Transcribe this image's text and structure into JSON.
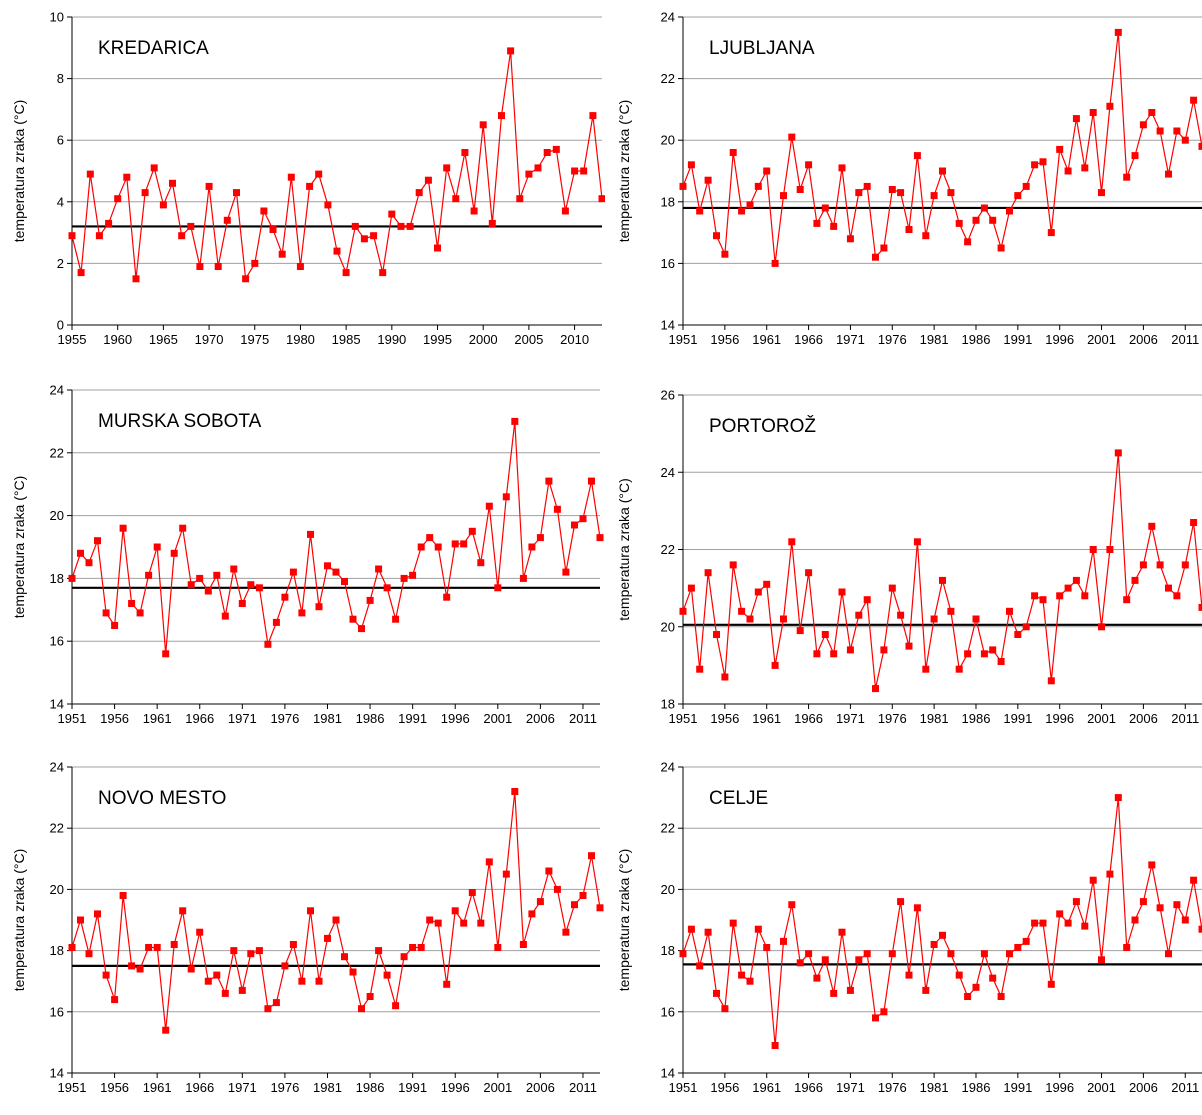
{
  "chart_data": [
    {
      "type": "line",
      "title": "KREDARICA",
      "ylabel": "temperatura zraka (°C)",
      "ylim": [
        0,
        10
      ],
      "yticks": [
        0,
        2,
        4,
        6,
        8,
        10
      ],
      "xlim": [
        1955,
        2013
      ],
      "xticks": [
        1955,
        1960,
        1965,
        1970,
        1975,
        1980,
        1985,
        1990,
        1995,
        2000,
        2005,
        2010
      ],
      "reference_line": 3.2,
      "grid": "horizontal",
      "series_color": "#ff0000",
      "x": [
        1955,
        1956,
        1957,
        1958,
        1959,
        1960,
        1961,
        1962,
        1963,
        1964,
        1965,
        1966,
        1967,
        1968,
        1969,
        1970,
        1971,
        1972,
        1973,
        1974,
        1975,
        1976,
        1977,
        1978,
        1979,
        1980,
        1981,
        1982,
        1983,
        1984,
        1985,
        1986,
        1987,
        1988,
        1989,
        1990,
        1991,
        1992,
        1993,
        1994,
        1995,
        1996,
        1997,
        1998,
        1999,
        2000,
        2001,
        2002,
        2003,
        2004,
        2005,
        2006,
        2007,
        2008,
        2009,
        2010,
        2011,
        2012,
        2013
      ],
      "y": [
        2.9,
        1.7,
        4.9,
        2.9,
        3.3,
        4.1,
        4.8,
        1.5,
        4.3,
        5.1,
        3.9,
        4.6,
        2.9,
        3.2,
        1.9,
        4.5,
        1.9,
        3.4,
        4.3,
        1.5,
        2.0,
        3.7,
        3.1,
        2.3,
        4.8,
        1.9,
        4.5,
        4.9,
        3.9,
        2.4,
        1.7,
        3.2,
        2.8,
        2.9,
        1.7,
        3.6,
        3.2,
        3.2,
        4.3,
        4.7,
        2.5,
        5.1,
        4.1,
        5.6,
        3.7,
        6.5,
        3.3,
        6.8,
        8.9,
        4.1,
        4.9,
        5.1,
        5.6,
        5.7,
        3.7,
        5.0,
        5.0,
        6.8,
        4.1
      ]
    },
    {
      "type": "line",
      "title": "LJUBLJANA",
      "ylabel": "temperatura zraka (°C)",
      "ylim": [
        14,
        24
      ],
      "yticks": [
        14,
        16,
        18,
        20,
        22,
        24
      ],
      "xlim": [
        1951,
        2013
      ],
      "xticks": [
        1951,
        1956,
        1961,
        1966,
        1971,
        1976,
        1981,
        1986,
        1991,
        1996,
        2001,
        2006,
        2011
      ],
      "reference_line": 17.8,
      "grid": "horizontal",
      "series_color": "#ff0000",
      "x": [
        1951,
        1952,
        1953,
        1954,
        1955,
        1956,
        1957,
        1958,
        1959,
        1960,
        1961,
        1962,
        1963,
        1964,
        1965,
        1966,
        1967,
        1968,
        1969,
        1970,
        1971,
        1972,
        1973,
        1974,
        1975,
        1976,
        1977,
        1978,
        1979,
        1980,
        1981,
        1982,
        1983,
        1984,
        1985,
        1986,
        1987,
        1988,
        1989,
        1990,
        1991,
        1992,
        1993,
        1994,
        1995,
        1996,
        1997,
        1998,
        1999,
        2000,
        2001,
        2002,
        2003,
        2004,
        2005,
        2006,
        2007,
        2008,
        2009,
        2010,
        2011,
        2012,
        2013
      ],
      "y": [
        18.5,
        19.2,
        17.7,
        18.7,
        16.9,
        16.3,
        19.6,
        17.7,
        17.9,
        18.5,
        19.0,
        16.0,
        18.2,
        20.1,
        18.4,
        19.2,
        17.3,
        17.8,
        17.2,
        19.1,
        16.8,
        18.3,
        18.5,
        16.2,
        16.5,
        18.4,
        18.3,
        17.1,
        19.5,
        16.9,
        18.2,
        19.0,
        18.3,
        17.3,
        16.7,
        17.4,
        17.8,
        17.4,
        16.5,
        17.7,
        18.2,
        18.5,
        19.2,
        19.3,
        17.0,
        19.7,
        19.0,
        20.7,
        19.1,
        20.9,
        18.3,
        21.1,
        23.5,
        18.8,
        19.5,
        20.5,
        20.9,
        20.3,
        18.9,
        20.3,
        20.0,
        21.3,
        19.8
      ]
    },
    {
      "type": "line",
      "title": "MURSKA SOBOTA",
      "ylabel": "temperatura zraka (°C)",
      "ylim": [
        14,
        24
      ],
      "yticks": [
        14,
        16,
        18,
        20,
        22,
        24
      ],
      "xlim": [
        1951,
        2013
      ],
      "xticks": [
        1951,
        1956,
        1961,
        1966,
        1971,
        1976,
        1981,
        1986,
        1991,
        1996,
        2001,
        2006,
        2011
      ],
      "reference_line": 17.7,
      "grid": "horizontal",
      "series_color": "#ff0000",
      "x": [
        1951,
        1952,
        1953,
        1954,
        1955,
        1956,
        1957,
        1958,
        1959,
        1960,
        1961,
        1962,
        1963,
        1964,
        1965,
        1966,
        1967,
        1968,
        1969,
        1970,
        1971,
        1972,
        1973,
        1974,
        1975,
        1976,
        1977,
        1978,
        1979,
        1980,
        1981,
        1982,
        1983,
        1984,
        1985,
        1986,
        1987,
        1988,
        1989,
        1990,
        1991,
        1992,
        1993,
        1994,
        1995,
        1996,
        1997,
        1998,
        1999,
        2000,
        2001,
        2002,
        2003,
        2004,
        2005,
        2006,
        2007,
        2008,
        2009,
        2010,
        2011,
        2012,
        2013
      ],
      "y": [
        18.0,
        18.8,
        18.5,
        19.2,
        16.9,
        16.5,
        19.6,
        17.2,
        16.9,
        18.1,
        19.0,
        15.6,
        18.8,
        19.6,
        17.8,
        18.0,
        17.6,
        18.1,
        16.8,
        18.3,
        17.2,
        17.8,
        17.7,
        15.9,
        16.6,
        17.4,
        18.2,
        16.9,
        19.4,
        17.1,
        18.4,
        18.2,
        17.9,
        16.7,
        16.4,
        17.3,
        18.3,
        17.7,
        16.7,
        18.0,
        18.1,
        19.0,
        19.3,
        19.0,
        17.4,
        19.1,
        19.1,
        19.5,
        18.5,
        20.3,
        17.7,
        20.6,
        23.0,
        18.0,
        19.0,
        19.3,
        21.1,
        20.2,
        18.2,
        19.7,
        19.9,
        21.1,
        19.3
      ]
    },
    {
      "type": "line",
      "title": "PORTOROŽ",
      "ylabel": "temperatura zraka (°C)",
      "ylim": [
        18,
        26
      ],
      "yticks": [
        18,
        20,
        22,
        24,
        26
      ],
      "xlim": [
        1951,
        2013
      ],
      "xticks": [
        1951,
        1956,
        1961,
        1966,
        1971,
        1976,
        1981,
        1986,
        1991,
        1996,
        2001,
        2006,
        2011
      ],
      "reference_line": 20.05,
      "grid": "horizontal",
      "series_color": "#ff0000",
      "x": [
        1951,
        1952,
        1953,
        1954,
        1955,
        1956,
        1957,
        1958,
        1959,
        1960,
        1961,
        1962,
        1963,
        1964,
        1965,
        1966,
        1967,
        1968,
        1969,
        1970,
        1971,
        1972,
        1973,
        1974,
        1975,
        1976,
        1977,
        1978,
        1979,
        1980,
        1981,
        1982,
        1983,
        1984,
        1985,
        1986,
        1987,
        1988,
        1989,
        1990,
        1991,
        1992,
        1993,
        1994,
        1995,
        1996,
        1997,
        1998,
        1999,
        2000,
        2001,
        2002,
        2003,
        2004,
        2005,
        2006,
        2007,
        2008,
        2009,
        2010,
        2011,
        2012,
        2013
      ],
      "y": [
        20.4,
        21.0,
        18.9,
        21.4,
        19.8,
        18.7,
        21.6,
        20.4,
        20.2,
        20.9,
        21.1,
        19.0,
        20.2,
        22.2,
        19.9,
        21.4,
        19.3,
        19.8,
        19.3,
        20.9,
        19.4,
        20.3,
        20.7,
        18.4,
        19.4,
        21.0,
        20.3,
        19.5,
        22.2,
        18.9,
        20.2,
        21.2,
        20.4,
        18.9,
        19.3,
        20.2,
        19.3,
        19.4,
        19.1,
        20.4,
        19.8,
        20.0,
        20.8,
        20.7,
        18.6,
        20.8,
        21.0,
        21.2,
        20.8,
        22.0,
        20.0,
        22.0,
        24.5,
        20.7,
        21.2,
        21.6,
        22.6,
        21.6,
        21.0,
        20.8,
        21.6,
        22.7,
        20.5
      ]
    },
    {
      "type": "line",
      "title": "NOVO MESTO",
      "ylabel": "temperatura zraka (°C)",
      "ylim": [
        14,
        24
      ],
      "yticks": [
        14,
        16,
        18,
        20,
        22,
        24
      ],
      "xlim": [
        1951,
        2013
      ],
      "xticks": [
        1951,
        1956,
        1961,
        1966,
        1971,
        1976,
        1981,
        1986,
        1991,
        1996,
        2001,
        2006,
        2011
      ],
      "reference_line": 17.5,
      "grid": "horizontal",
      "series_color": "#ff0000",
      "x": [
        1951,
        1952,
        1953,
        1954,
        1955,
        1956,
        1957,
        1958,
        1959,
        1960,
        1961,
        1962,
        1963,
        1964,
        1965,
        1966,
        1967,
        1968,
        1969,
        1970,
        1971,
        1972,
        1973,
        1974,
        1975,
        1976,
        1977,
        1978,
        1979,
        1980,
        1981,
        1982,
        1983,
        1984,
        1985,
        1986,
        1987,
        1988,
        1989,
        1990,
        1991,
        1992,
        1993,
        1994,
        1995,
        1996,
        1997,
        1998,
        1999,
        2000,
        2001,
        2002,
        2003,
        2004,
        2005,
        2006,
        2007,
        2008,
        2009,
        2010,
        2011,
        2012,
        2013
      ],
      "y": [
        18.1,
        19.0,
        17.9,
        19.2,
        17.2,
        16.4,
        19.8,
        17.5,
        17.4,
        18.1,
        18.1,
        15.4,
        18.2,
        19.3,
        17.4,
        18.6,
        17.0,
        17.2,
        16.6,
        18.0,
        16.7,
        17.9,
        18.0,
        16.1,
        16.3,
        17.5,
        18.2,
        17.0,
        19.3,
        17.0,
        18.4,
        19.0,
        17.8,
        17.3,
        16.1,
        16.5,
        18.0,
        17.2,
        16.2,
        17.8,
        18.1,
        18.1,
        19.0,
        18.9,
        16.9,
        19.3,
        18.9,
        19.9,
        18.9,
        20.9,
        18.1,
        20.5,
        23.2,
        18.2,
        19.2,
        19.6,
        20.6,
        20.0,
        18.6,
        19.5,
        19.8,
        21.1,
        19.4
      ]
    },
    {
      "type": "line",
      "title": "CELJE",
      "ylabel": "temperatura zraka (°C)",
      "ylim": [
        14,
        24
      ],
      "yticks": [
        14,
        16,
        18,
        20,
        22,
        24
      ],
      "xlim": [
        1951,
        2013
      ],
      "xticks": [
        1951,
        1956,
        1961,
        1966,
        1971,
        1976,
        1981,
        1986,
        1991,
        1996,
        2001,
        2006,
        2011
      ],
      "reference_line": 17.55,
      "grid": "horizontal",
      "series_color": "#ff0000",
      "x": [
        1951,
        1952,
        1953,
        1954,
        1955,
        1956,
        1957,
        1958,
        1959,
        1960,
        1961,
        1962,
        1963,
        1964,
        1965,
        1966,
        1967,
        1968,
        1969,
        1970,
        1971,
        1972,
        1973,
        1974,
        1975,
        1976,
        1977,
        1978,
        1979,
        1980,
        1981,
        1982,
        1983,
        1984,
        1985,
        1986,
        1987,
        1988,
        1989,
        1990,
        1991,
        1992,
        1993,
        1994,
        1995,
        1996,
        1997,
        1998,
        1999,
        2000,
        2001,
        2002,
        2003,
        2004,
        2005,
        2006,
        2007,
        2008,
        2009,
        2010,
        2011,
        2012,
        2013
      ],
      "y": [
        17.9,
        18.7,
        17.5,
        18.6,
        16.6,
        16.1,
        18.9,
        17.2,
        17.0,
        18.7,
        18.1,
        14.9,
        18.3,
        19.5,
        17.6,
        17.9,
        17.1,
        17.7,
        16.6,
        18.6,
        16.7,
        17.7,
        17.9,
        15.8,
        16.0,
        17.9,
        19.6,
        17.2,
        19.4,
        16.7,
        18.2,
        18.5,
        17.9,
        17.2,
        16.5,
        16.8,
        17.9,
        17.1,
        16.5,
        17.9,
        18.1,
        18.3,
        18.9,
        18.9,
        16.9,
        19.2,
        18.9,
        19.6,
        18.8,
        20.3,
        17.7,
        20.5,
        23.0,
        18.1,
        19.0,
        19.6,
        20.8,
        19.4,
        17.9,
        19.5,
        19.0,
        20.3,
        18.7
      ]
    }
  ]
}
